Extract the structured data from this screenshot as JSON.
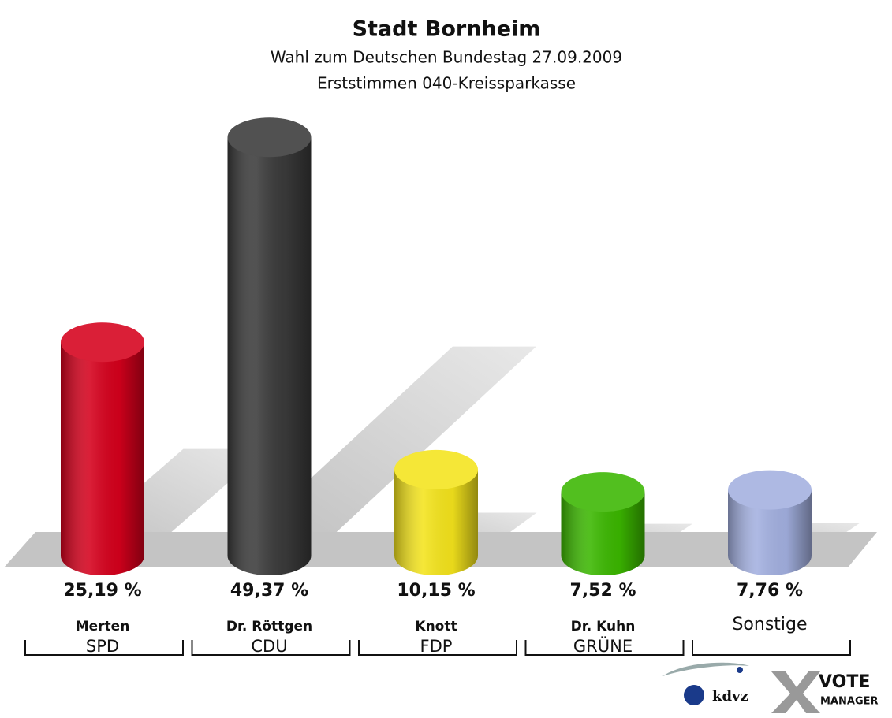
{
  "chart_data": {
    "type": "bar3d",
    "title": "Stadt Bornheim",
    "subtitle": "Wahl zum Deutschen Bundestag 27.09.2009",
    "subtitle2": "Erststimmen 040-Kreissparkasse",
    "categories": [
      "Merten",
      "Dr. Röttgen",
      "Knott",
      "Dr. Kuhn",
      "Sonstige"
    ],
    "parties": [
      "SPD",
      "CDU",
      "FDP",
      "GRÜNE",
      null
    ],
    "values": [
      25.19,
      49.37,
      10.15,
      7.52,
      7.76
    ],
    "value_labels": [
      "25,19 %",
      "49,37 %",
      "10,15 %",
      "7,52 %",
      "7,76 %"
    ],
    "colors": [
      "#d5001c",
      "#3a3a3a",
      "#f4e41c",
      "#3bb700",
      "#a3b0e0"
    ]
  },
  "logo": {
    "brand": "kdvz",
    "product": [
      "VOTE",
      "MANAGER"
    ]
  }
}
